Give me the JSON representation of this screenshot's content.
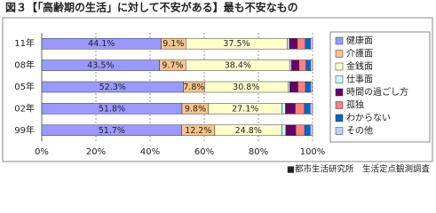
{
  "chart_data": {
    "type": "bar",
    "orientation": "horizontal",
    "stacked": true,
    "title": "図３【「高齢期の生活」に対して不安がある】最も不安なもの",
    "source": "■都市生活研究所　生活定点観測調査",
    "categories": [
      "11年",
      "08年",
      "05年",
      "02年",
      "99年"
    ],
    "series": [
      {
        "name": "健康面",
        "color": "#9999ff",
        "values": [
          44.1,
          43.5,
          52.3,
          51.8,
          51.7
        ],
        "value_labels": [
          "44.1%",
          "43.5%",
          "52.3%",
          "51.8%",
          "51.7%"
        ]
      },
      {
        "name": "介護面",
        "color": "#f8c48c",
        "values": [
          9.1,
          9.7,
          7.8,
          9.8,
          12.2
        ],
        "value_labels": [
          "9.1%",
          "9.7%",
          "7.8%",
          "9.8%",
          "12.2%"
        ]
      },
      {
        "name": "金銭面",
        "color": "#ffffcc",
        "values": [
          37.5,
          38.4,
          30.8,
          27.1,
          24.8
        ],
        "value_labels": [
          "37.5%",
          "38.4%",
          "30.8%",
          "27.1%",
          "24.8%"
        ]
      },
      {
        "name": "仕事面",
        "color": "#ccffff",
        "values": [
          0.7,
          0.6,
          0.7,
          1.3,
          1.4
        ]
      },
      {
        "name": "時間の過ごし方",
        "color": "#660066",
        "values": [
          3.0,
          2.8,
          3.0,
          3.6,
          3.7
        ]
      },
      {
        "name": "孤独",
        "color": "#ff8080",
        "values": [
          2.9,
          2.6,
          2.8,
          3.4,
          3.3
        ]
      },
      {
        "name": "わからない",
        "color": "#0066cc",
        "values": [
          1.9,
          1.6,
          1.8,
          2.1,
          2.0
        ]
      },
      {
        "name": "その他",
        "color": "#ccccff",
        "values": [
          0.8,
          0.8,
          0.6,
          0.9,
          0.9
        ]
      }
    ],
    "xlim": [
      0,
      100
    ],
    "xticks": [
      {
        "value": 0,
        "label": "0%"
      },
      {
        "value": 20,
        "label": "20%"
      },
      {
        "value": 40,
        "label": "40%"
      },
      {
        "value": 60,
        "label": "60%"
      },
      {
        "value": 80,
        "label": "80%"
      },
      {
        "value": 100,
        "label": "100%"
      }
    ],
    "grid": true,
    "legend": "right"
  }
}
